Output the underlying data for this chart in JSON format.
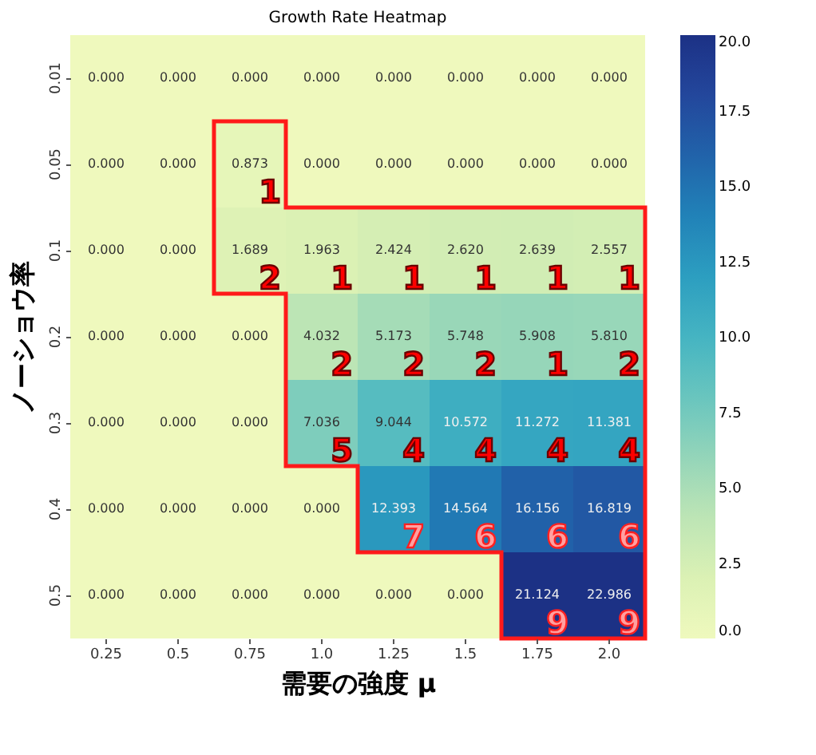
{
  "chart_data": {
    "type": "heatmap",
    "title": "Growth Rate Heatmap",
    "xlabel": "需要の強度 μ",
    "ylabel": "ノーショウ率",
    "categories": [
      "0.25",
      "0.5",
      "0.75",
      "1.0",
      "1.25",
      "1.5",
      "1.75",
      "2.0"
    ],
    "y_categories": [
      "0.01",
      "0.05",
      "0.1",
      "0.2",
      "0.3",
      "0.4",
      "0.5"
    ],
    "cells": [
      [
        0,
        0,
        0,
        0,
        0,
        0,
        0,
        0
      ],
      [
        0,
        0,
        0.873,
        0,
        0,
        0,
        0,
        0
      ],
      [
        0,
        0,
        1.689,
        1.963,
        2.424,
        2.62,
        2.639,
        2.557
      ],
      [
        0,
        0,
        0,
        4.032,
        5.173,
        5.748,
        5.908,
        5.81
      ],
      [
        0,
        0,
        0,
        7.036,
        9.044,
        10.572,
        11.272,
        11.381
      ],
      [
        0,
        0,
        0,
        0,
        12.393,
        14.564,
        16.156,
        16.819
      ],
      [
        0,
        0,
        0,
        0,
        0,
        0,
        21.124,
        22.986
      ]
    ],
    "cell_labels": [
      [
        "0.000",
        "0.000",
        "0.000",
        "0.000",
        "0.000",
        "0.000",
        "0.000",
        "0.000"
      ],
      [
        "0.000",
        "0.000",
        "0.873",
        "0.000",
        "0.000",
        "0.000",
        "0.000",
        "0.000"
      ],
      [
        "0.000",
        "0.000",
        "1.689",
        "1.963",
        "2.424",
        "2.620",
        "2.639",
        "2.557"
      ],
      [
        "0.000",
        "0.000",
        "0.000",
        "4.032",
        "5.173",
        "5.748",
        "5.908",
        "5.810"
      ],
      [
        "0.000",
        "0.000",
        "0.000",
        "7.036",
        "9.044",
        "10.572",
        "11.272",
        "11.381"
      ],
      [
        "0.000",
        "0.000",
        "0.000",
        "0.000",
        "12.393",
        "14.564",
        "16.156",
        "16.819"
      ],
      [
        "0.000",
        "0.000",
        "0.000",
        "0.000",
        "0.000",
        "0.000",
        "21.124",
        "22.986"
      ]
    ],
    "clim": [
      0,
      20
    ],
    "cticks": [
      {
        "value": 0,
        "label": "0.0"
      },
      {
        "value": 2.5,
        "label": "2.5"
      },
      {
        "value": 5,
        "label": "5.0"
      },
      {
        "value": 7.5,
        "label": "7.5"
      },
      {
        "value": 10,
        "label": "10.0"
      },
      {
        "value": 12.5,
        "label": "12.5"
      },
      {
        "value": 15,
        "label": "15.0"
      },
      {
        "value": 17.5,
        "label": "17.5"
      },
      {
        "value": 20,
        "label": "20.0"
      }
    ],
    "annotations": [
      "1",
      "2",
      "1",
      "1",
      "1",
      "1",
      "1",
      "2",
      "2",
      "2",
      "1",
      "2",
      "5",
      "4",
      "4",
      "4",
      "4",
      "7",
      "6",
      "6",
      "6",
      "9",
      "9"
    ]
  }
}
